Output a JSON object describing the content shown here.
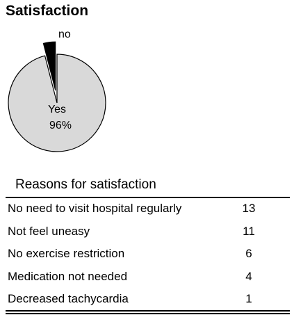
{
  "chart_data": [
    {
      "type": "pie",
      "title": "Satisfaction",
      "slices": [
        {
          "label": "Yes",
          "value": 96,
          "display": "96%",
          "color": "#d9d9d9"
        },
        {
          "label": "no",
          "value": 4,
          "display": "",
          "color": "#000000"
        }
      ]
    },
    {
      "type": "table",
      "title": "Reasons for satisfaction",
      "rows": [
        {
          "reason": "No need to visit hospital regularly",
          "count": "13"
        },
        {
          "reason": "Not feel uneasy",
          "count": "11"
        },
        {
          "reason": "No exercise restriction",
          "count": "6"
        },
        {
          "reason": "Medication not needed",
          "count": "4"
        },
        {
          "reason": "Decreased tachycardia",
          "count": "1"
        }
      ]
    }
  ]
}
